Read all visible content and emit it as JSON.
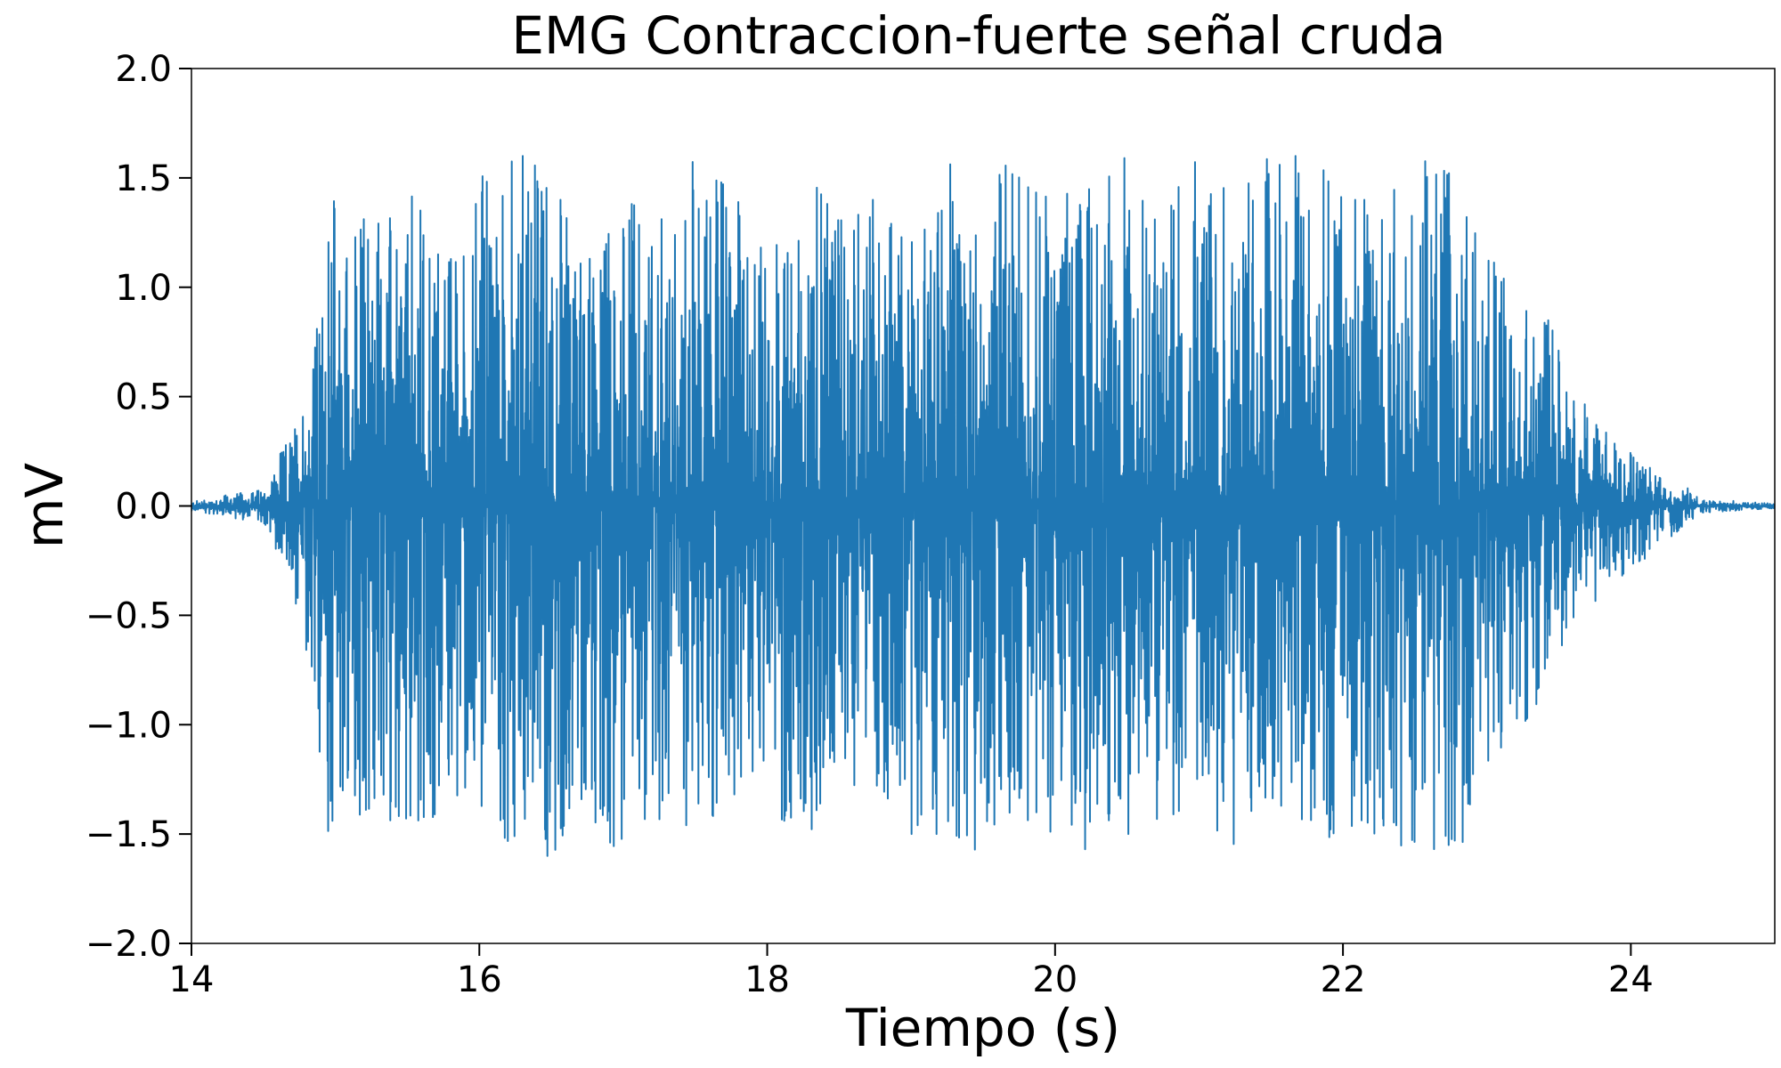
{
  "chart_data": {
    "type": "line",
    "title": "EMG Contraccion-fuerte señal cruda",
    "xlabel": "Tiempo (s)",
    "ylabel": "mV",
    "xlim": [
      14,
      25
    ],
    "ylim": [
      -2.0,
      2.0
    ],
    "x_ticks": [
      14,
      16,
      18,
      20,
      22,
      24
    ],
    "x_tick_labels": [
      "14",
      "16",
      "18",
      "20",
      "22",
      "24"
    ],
    "y_ticks": [
      -2.0,
      -1.5,
      -1.0,
      -0.5,
      0.0,
      0.5,
      1.0,
      1.5,
      2.0
    ],
    "y_tick_labels": [
      "−2.0",
      "−1.5",
      "−1.0",
      "−0.5",
      "0.0",
      "0.5",
      "1.0",
      "1.5",
      "2.0"
    ],
    "grid": false,
    "legend": "none",
    "line_color": "#1f77b4",
    "series": [
      {
        "x": [
          14.0,
          14.5,
          14.7,
          14.8,
          14.9,
          15.0,
          15.1,
          15.3,
          15.4,
          15.6,
          15.8,
          16.0,
          16.3,
          16.5,
          16.7,
          17.0,
          17.3,
          17.5,
          17.8,
          18.0,
          18.3,
          18.5,
          18.8,
          19.0,
          19.3,
          19.5,
          19.7,
          20.0,
          20.3,
          20.5,
          20.7,
          21.0,
          21.3,
          21.5,
          21.8,
          22.0,
          22.3,
          22.5,
          22.8,
          23.0,
          23.2,
          23.4,
          23.6,
          23.8,
          24.0,
          24.2,
          24.4,
          24.5,
          24.8,
          25.0
        ],
        "envelope_pos": [
          0.02,
          0.08,
          0.35,
          0.6,
          0.95,
          1.6,
          1.25,
          1.6,
          1.3,
          1.5,
          1.2,
          1.5,
          1.6,
          1.6,
          1.2,
          1.4,
          1.3,
          1.6,
          1.4,
          1.2,
          1.5,
          1.3,
          1.6,
          1.2,
          1.6,
          1.4,
          1.6,
          1.4,
          1.5,
          1.6,
          1.3,
          1.6,
          1.5,
          1.6,
          1.6,
          1.4,
          1.4,
          1.6,
          1.5,
          1.15,
          1.0,
          0.9,
          0.55,
          0.35,
          0.25,
          0.15,
          0.08,
          0.03,
          0.02,
          0.01
        ],
        "envelope_neg": [
          -0.02,
          -0.08,
          -0.35,
          -0.85,
          -1.4,
          -1.6,
          -1.5,
          -1.6,
          -1.4,
          -1.5,
          -1.3,
          -1.4,
          -1.6,
          -1.6,
          -1.4,
          -1.6,
          -1.4,
          -1.5,
          -1.3,
          -1.4,
          -1.5,
          -1.6,
          -1.3,
          -1.5,
          -1.5,
          -1.6,
          -1.4,
          -1.5,
          -1.6,
          -1.5,
          -1.5,
          -1.4,
          -1.6,
          -1.4,
          -1.6,
          -1.5,
          -1.5,
          -1.6,
          -1.6,
          -1.2,
          -1.05,
          -0.85,
          -0.55,
          -0.4,
          -0.3,
          -0.18,
          -0.08,
          -0.03,
          -0.02,
          -0.01
        ]
      }
    ]
  }
}
